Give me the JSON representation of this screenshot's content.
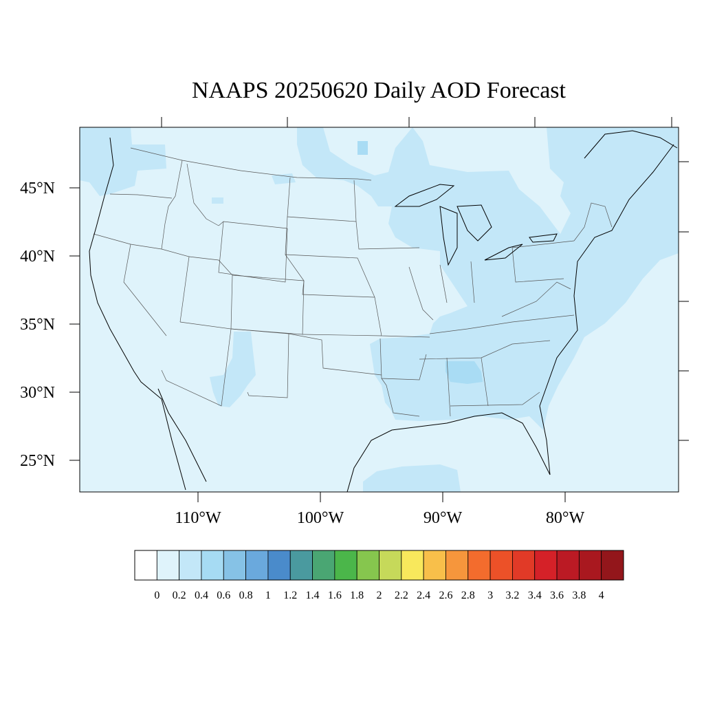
{
  "map": {
    "title": "NAAPS 20250620 Daily AOD Forecast",
    "lat_ticks": [
      "45°N",
      "40°N",
      "35°N",
      "30°N",
      "25°N"
    ],
    "lon_ticks": [
      "110°W",
      "100°W",
      "90°W",
      "80°W"
    ],
    "background_color": "#dff3fb",
    "region_color": "#c3e7f8",
    "hotspot_color": "#a9dcf4"
  },
  "colorbar": {
    "labels": [
      "0",
      "0.2",
      "0.4",
      "0.6",
      "0.8",
      "1",
      "1.2",
      "1.4",
      "1.6",
      "1.8",
      "2",
      "2.2",
      "2.4",
      "2.6",
      "2.8",
      "3",
      "3.2",
      "3.4",
      "3.6",
      "3.8",
      "4"
    ],
    "colors": [
      "#ffffff",
      "#dff3fb",
      "#c3e7f8",
      "#a6dbf3",
      "#86c2e6",
      "#6aa9dd",
      "#4a8bcb",
      "#4a9a9f",
      "#4aa673",
      "#4bb64a",
      "#86c64e",
      "#c6d95a",
      "#f8e85c",
      "#f8bf4a",
      "#f6963c",
      "#f36c2d",
      "#ec5128",
      "#e13a27",
      "#d52128",
      "#bb1a24",
      "#a9181f",
      "#93161b"
    ]
  }
}
